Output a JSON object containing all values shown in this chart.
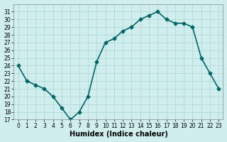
{
  "x": [
    0,
    1,
    2,
    3,
    4,
    5,
    6,
    7,
    8,
    9,
    10,
    11,
    12,
    13,
    14,
    15,
    16,
    17,
    18,
    19,
    20,
    21,
    22,
    23
  ],
  "y": [
    24,
    22,
    21.5,
    21,
    20,
    18.5,
    17,
    18,
    20,
    24.5,
    27,
    27.5,
    28.5,
    29,
    30,
    30.5,
    31,
    30,
    29.5,
    29.5,
    29,
    25,
    23,
    21
  ],
  "xlabel": "Humidex (Indice chaleur)",
  "ylim": [
    17,
    32
  ],
  "xlim": [
    -0.5,
    23.5
  ],
  "yticks": [
    17,
    18,
    19,
    20,
    21,
    22,
    23,
    24,
    25,
    26,
    27,
    28,
    29,
    30,
    31
  ],
  "xticks": [
    0,
    1,
    2,
    3,
    4,
    5,
    6,
    7,
    8,
    9,
    10,
    11,
    12,
    13,
    14,
    15,
    16,
    17,
    18,
    19,
    20,
    21,
    22,
    23
  ],
  "line_color": "#006666",
  "marker": "D",
  "marker_size": 2.5,
  "bg_color": "#d0eeee",
  "grid_color": "#b0d8d8",
  "line_width": 1.2
}
